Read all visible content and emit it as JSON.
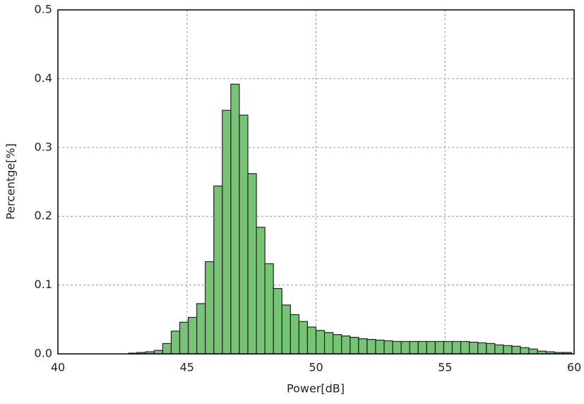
{
  "chart_data": {
    "type": "histogram",
    "x_label": "Power[dB]",
    "y_label": "Percentge[%]",
    "bins": [
      40.1,
      40.43,
      40.76,
      41.09,
      41.42,
      41.75,
      42.08,
      42.41,
      42.74,
      43.07,
      43.4,
      43.73,
      44.06,
      44.39,
      44.72,
      45.05,
      45.38,
      45.71,
      46.04,
      46.37,
      46.7,
      47.03,
      47.36,
      47.69,
      48.02,
      48.35,
      48.68,
      49.01,
      49.34,
      49.67,
      50.0,
      50.33,
      50.66,
      50.99,
      51.32,
      51.65,
      51.98,
      52.31,
      52.64,
      52.97,
      53.3,
      53.63,
      53.96,
      54.29,
      54.62,
      54.95,
      55.28,
      55.61,
      55.94,
      56.27,
      56.6,
      56.93,
      57.26,
      57.59,
      57.92,
      58.25,
      58.58,
      58.91,
      59.24,
      59.57,
      59.9
    ],
    "values": [
      0,
      0,
      0,
      0,
      0,
      0,
      0,
      0,
      0.001,
      0.002,
      0.003,
      0.005,
      0.015,
      0.033,
      0.046,
      0.053,
      0.073,
      0.134,
      0.244,
      0.354,
      0.392,
      0.347,
      0.262,
      0.184,
      0.131,
      0.095,
      0.071,
      0.057,
      0.047,
      0.039,
      0.034,
      0.031,
      0.028,
      0.026,
      0.024,
      0.022,
      0.021,
      0.02,
      0.019,
      0.018,
      0.018,
      0.018,
      0.018,
      0.018,
      0.018,
      0.018,
      0.018,
      0.018,
      0.017,
      0.016,
      0.015,
      0.013,
      0.012,
      0.011,
      0.009,
      0.007,
      0.004,
      0.003,
      0.002,
      0.002
    ],
    "color": "#77c477",
    "xlim": [
      40,
      60
    ],
    "xticks": [
      40,
      45,
      50,
      55,
      60
    ],
    "ylim": [
      0,
      0.5
    ],
    "yticks": [
      {
        "value": 0,
        "label": "0.0"
      },
      0.1,
      0.2,
      0.3,
      0.4,
      0.5
    ],
    "grid": true
  }
}
